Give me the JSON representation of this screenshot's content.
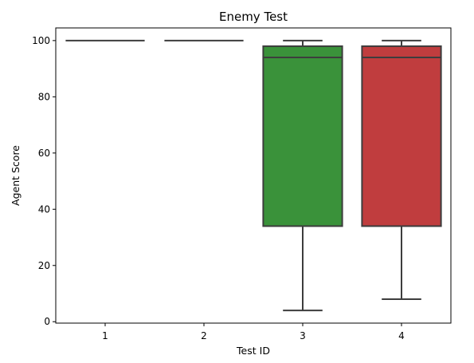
{
  "chart_data": {
    "type": "box",
    "title": "Enemy Test",
    "xlabel": "Test ID",
    "ylabel": "Agent Score",
    "categories": [
      "1",
      "2",
      "3",
      "4"
    ],
    "ylim": [
      -0.5,
      104.5
    ],
    "yticks": [
      0,
      20,
      40,
      60,
      80,
      100
    ],
    "grid": false,
    "boxes": [
      {
        "category": "1",
        "whisker_low": 100,
        "q1": 100,
        "median": 100,
        "q3": 100,
        "whisker_high": 100,
        "color": "#1f77b4"
      },
      {
        "category": "2",
        "whisker_low": 100,
        "q1": 100,
        "median": 100,
        "q3": 100,
        "whisker_high": 100,
        "color": "#ff7f0e"
      },
      {
        "category": "3",
        "whisker_low": 4,
        "q1": 34,
        "median": 94,
        "q3": 98,
        "whisker_high": 100,
        "color": "#3a923a"
      },
      {
        "category": "4",
        "whisker_low": 8,
        "q1": 34,
        "median": 94,
        "q3": 98,
        "whisker_high": 100,
        "color": "#c03d3e"
      }
    ]
  }
}
